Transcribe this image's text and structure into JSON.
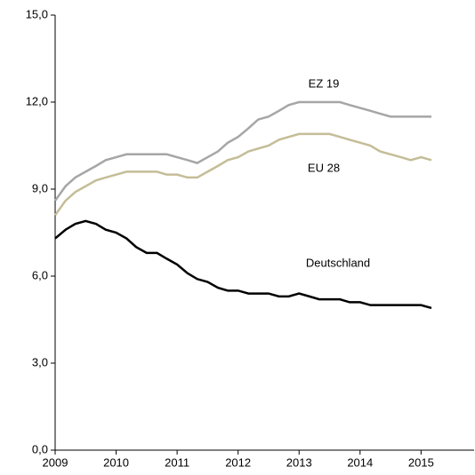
{
  "chart_data": {
    "type": "line",
    "x": [
      2009,
      2009.17,
      2009.33,
      2009.5,
      2009.67,
      2009.83,
      2010,
      2010.17,
      2010.33,
      2010.5,
      2010.67,
      2010.83,
      2011,
      2011.17,
      2011.33,
      2011.5,
      2011.67,
      2011.83,
      2012,
      2012.17,
      2012.33,
      2012.5,
      2012.67,
      2012.83,
      2013,
      2013.17,
      2013.33,
      2013.5,
      2013.67,
      2013.83,
      2014,
      2014.17,
      2014.33,
      2014.5,
      2014.67,
      2014.83,
      2015,
      2015.17
    ],
    "series": [
      {
        "name": "EZ 19",
        "color": "#a6a6a6",
        "values": [
          8.6,
          9.1,
          9.4,
          9.6,
          9.8,
          10.0,
          10.1,
          10.2,
          10.2,
          10.2,
          10.2,
          10.2,
          10.1,
          10.0,
          9.9,
          10.1,
          10.3,
          10.6,
          10.8,
          11.1,
          11.4,
          11.5,
          11.7,
          11.9,
          12.0,
          12.0,
          12.0,
          12.0,
          12.0,
          11.9,
          11.8,
          11.7,
          11.6,
          11.5,
          11.5,
          11.5,
          11.5,
          11.5
        ]
      },
      {
        "name": "EU 28",
        "color": "#c4bd97",
        "values": [
          8.1,
          8.6,
          8.9,
          9.1,
          9.3,
          9.4,
          9.5,
          9.6,
          9.6,
          9.6,
          9.6,
          9.5,
          9.5,
          9.4,
          9.4,
          9.6,
          9.8,
          10.0,
          10.1,
          10.3,
          10.4,
          10.5,
          10.7,
          10.8,
          10.9,
          10.9,
          10.9,
          10.9,
          10.8,
          10.7,
          10.6,
          10.5,
          10.3,
          10.2,
          10.1,
          10.0,
          10.1,
          10.0
        ]
      },
      {
        "name": "Deutschland",
        "color": "#000000",
        "values": [
          7.3,
          7.6,
          7.8,
          7.9,
          7.8,
          7.6,
          7.5,
          7.3,
          7.0,
          6.8,
          6.8,
          6.6,
          6.4,
          6.1,
          5.9,
          5.8,
          5.6,
          5.5,
          5.5,
          5.4,
          5.4,
          5.4,
          5.3,
          5.3,
          5.4,
          5.3,
          5.2,
          5.2,
          5.2,
          5.1,
          5.1,
          5.0,
          5.0,
          5.0,
          5.0,
          5.0,
          5.0,
          4.9
        ]
      }
    ],
    "xlim": [
      2009,
      2015.87
    ],
    "xticks": [
      2009,
      2010,
      2011,
      2012,
      2013,
      2014,
      2015
    ],
    "ylim": [
      0,
      15
    ],
    "yticks": [
      {
        "value": 0,
        "label": "0,0"
      },
      {
        "value": 3,
        "label": "3,0"
      },
      {
        "value": 6,
        "label": "6,0"
      },
      {
        "value": 9,
        "label": "9,0"
      },
      {
        "value": 12,
        "label": "12,0"
      },
      {
        "value": 15,
        "label": "15,0"
      }
    ],
    "grid": false
  }
}
